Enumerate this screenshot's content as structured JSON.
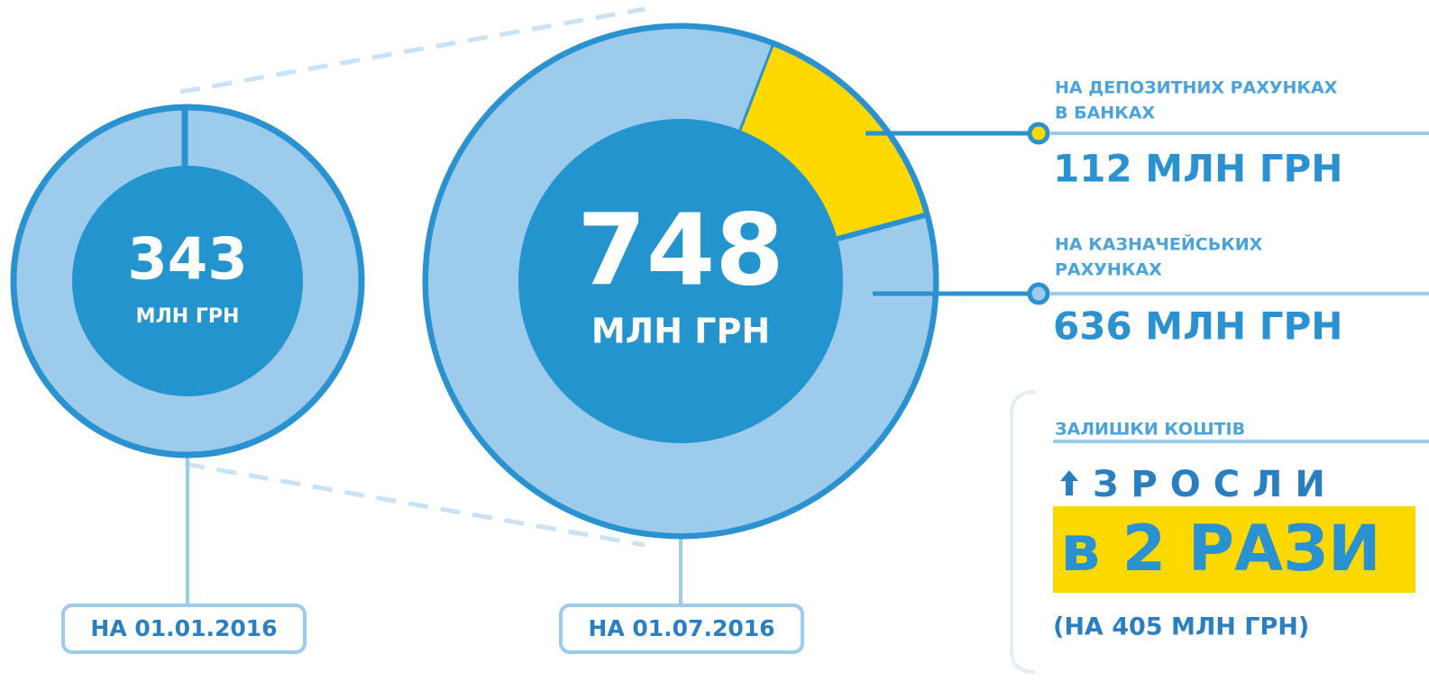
{
  "left": {
    "total": 343,
    "unit": "МЛН ГРН",
    "date": "НА 01.01.2016"
  },
  "right": {
    "total": 748,
    "unit": "МЛН ГРН",
    "date": "НА 01.07.2016",
    "segments": [
      {
        "label_lines": [
          "НА ДЕПОЗИТНИХ РАХУНКАХ",
          "В БАНКАХ"
        ],
        "value": 112,
        "value_label": "112 МЛН ГРН",
        "color": "#ffd800"
      },
      {
        "label_lines": [
          "НА КАЗНАЧЕЙСЬКИХ",
          "РАХУНКАХ"
        ],
        "value": 636,
        "value_label": "636 МЛН ГРН",
        "color": "#9ccbec"
      }
    ]
  },
  "summary": {
    "caption": "ЗАЛИШКИ КОШТІВ",
    "headline": "ЗРОСЛИ",
    "highlight": "в 2 РАЗИ",
    "note": "(НА 405 МЛН ГРН)"
  }
}
